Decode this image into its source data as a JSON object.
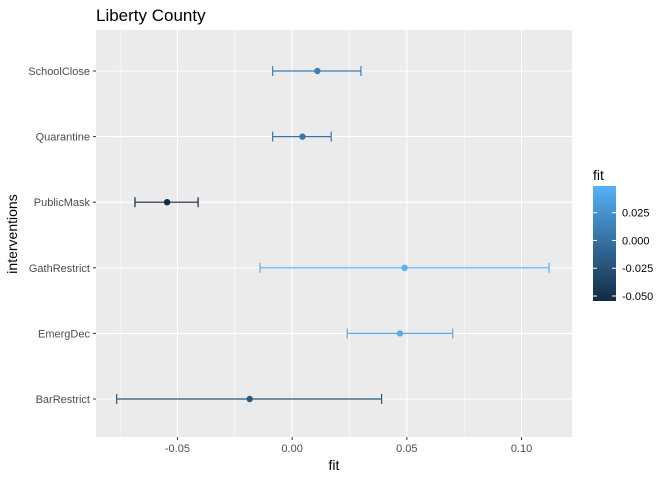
{
  "chart_data": {
    "type": "errorbar",
    "title": "Liberty County",
    "xlabel": "fit",
    "ylabel": "interventions",
    "categories": [
      "SchoolClose",
      "Quarantine",
      "PublicMask",
      "GathRestrict",
      "EmergDec",
      "BarRestrict"
    ],
    "fit": [
      0.011,
      0.0045,
      -0.0545,
      0.049,
      0.047,
      -0.0185
    ],
    "lower": [
      -0.0085,
      -0.0085,
      -0.0685,
      -0.014,
      0.024,
      -0.0765
    ],
    "upper": [
      0.03,
      0.017,
      -0.041,
      0.112,
      0.07,
      0.039
    ],
    "xlim": [
      -0.0855,
      0.122
    ],
    "xticks": [
      -0.05,
      0.0,
      0.05,
      0.1
    ],
    "xtick_labels": [
      "-0.05",
      "0.00",
      "0.05",
      "0.10"
    ],
    "grid": true,
    "legend": {
      "title": "fit",
      "position": "right",
      "range": [
        -0.0545,
        0.049
      ],
      "ticks": [
        0.025,
        0.0,
        -0.025,
        -0.05
      ],
      "tick_labels": [
        "0.025",
        "0.000",
        "-0.025",
        "-0.050"
      ],
      "color_low": "#132B43",
      "color_high": "#56B1F7"
    }
  }
}
